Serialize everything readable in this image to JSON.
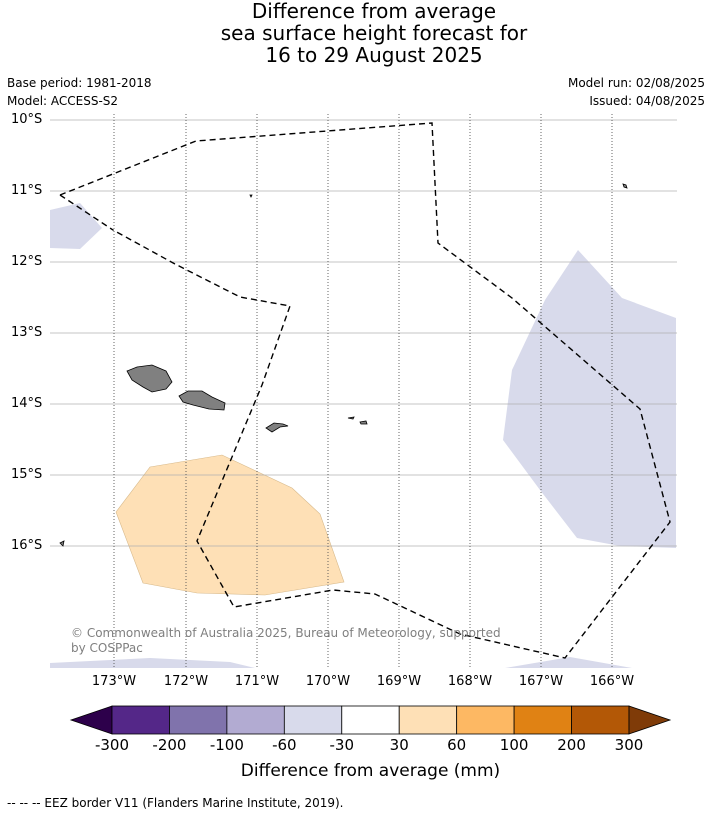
{
  "title_lines": [
    "Difference from average",
    "sea surface height forecast for",
    "16 to 29 August 2025"
  ],
  "meta": {
    "base_period": "Base period: 1981-2018",
    "model": "Model: ACCESS-S2",
    "model_run": "Model run: 02/08/2025",
    "issued": "Issued: 04/08/2025"
  },
  "latitudes": [
    "10°S",
    "11°S",
    "12°S",
    "13°S",
    "14°S",
    "15°S",
    "16°S"
  ],
  "longitudes": [
    "173°W",
    "172°W",
    "171°W",
    "170°W",
    "169°W",
    "168°W",
    "167°W",
    "166°W"
  ],
  "copyright": "© Commonwealth of Australia 2025, Bureau of Meteorology, supported by COSPPac",
  "colorbar": {
    "label": "Difference from average (mm)",
    "ticks": [
      "-300",
      "-200",
      "-100",
      "-60",
      "-30",
      "30",
      "60",
      "100",
      "200",
      "300"
    ],
    "colors": [
      "#2d004b",
      "#542788",
      "#8073ac",
      "#b2abd2",
      "#d8daeb",
      "#ffffff",
      "#fee0b6",
      "#fdb863",
      "#e08214",
      "#b35806",
      "#7f3b08"
    ]
  },
  "legend_note": "--  --  -- EEZ border V11 (Flanders Marine Institute, 2019).",
  "colors": {
    "land": "#808080",
    "eez": "#000000",
    "grid": "#b0b0b0"
  }
}
